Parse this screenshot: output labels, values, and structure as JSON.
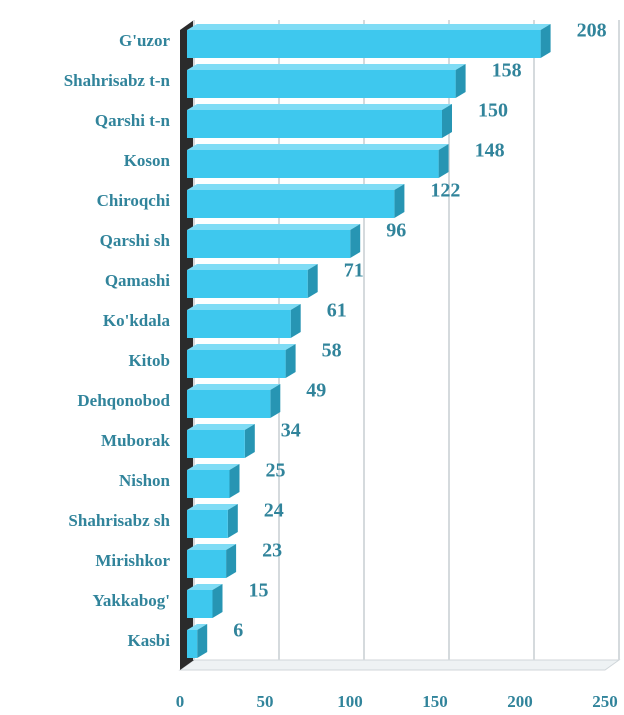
{
  "chart_data": {
    "type": "bar",
    "orientation": "horizontal",
    "categories": [
      "G'uzor",
      "Shahrisabz t-n",
      "Qarshi t-n",
      "Koson",
      "Chiroqchi",
      "Qarshi sh",
      "Qamashi",
      "Ko'kdala",
      "Kitob",
      "Dehqonobod",
      "Muborak",
      "Nishon",
      "Shahrisabz sh",
      "Mirishkor",
      "Yakkabog'",
      "Kasbi"
    ],
    "values": [
      208,
      158,
      150,
      148,
      122,
      96,
      71,
      61,
      58,
      49,
      34,
      25,
      24,
      23,
      15,
      6
    ],
    "color": "#3ec8ee",
    "xlim": [
      0,
      250
    ],
    "xticks": [
      0,
      50,
      100,
      150,
      200,
      250
    ],
    "grid": true
  }
}
